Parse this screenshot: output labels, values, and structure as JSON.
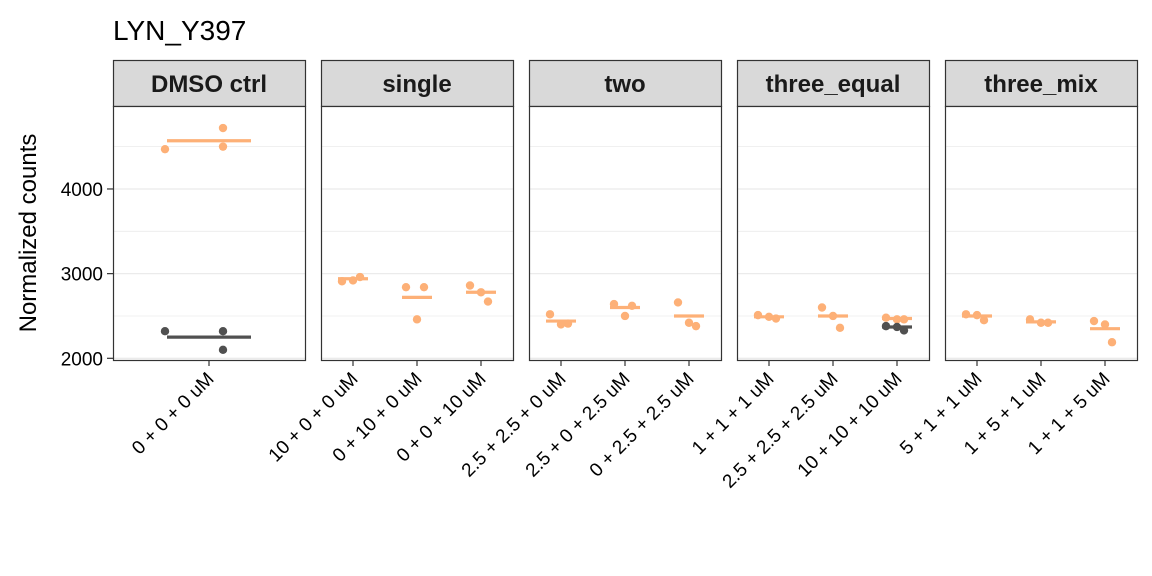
{
  "chart_data": {
    "type": "scatter",
    "title": "LYN_Y397",
    "ylabel": "Normalized counts",
    "xlabel": "",
    "ylim": [
      1980,
      4980
    ],
    "yticks": [
      2000,
      3000,
      4000
    ],
    "grid": true,
    "legend": "none",
    "colors": {
      "treated": "#FDB077",
      "control": "#505050",
      "strip_bg": "#D9D9D9",
      "panel_border": "#333333",
      "grid": "#EBEBEB"
    },
    "panels": [
      {
        "label": "DMSO ctrl",
        "categories": [
          "0 + 0 + 0 uM"
        ],
        "groups": [
          {
            "category": "0 + 0 + 0 uM",
            "series": "treated",
            "mean": 4570,
            "points": [
              4470,
              4720,
              4500
            ]
          },
          {
            "category": "0 + 0 + 0 uM",
            "series": "control",
            "mean": 2250,
            "points": [
              2320,
              2320,
              2100
            ]
          }
        ]
      },
      {
        "label": "single",
        "categories": [
          "10 + 0 + 0 uM",
          "0 + 10 + 0 uM",
          "0 + 0 + 10 uM"
        ],
        "groups": [
          {
            "category": "10 + 0 + 0 uM",
            "series": "treated",
            "mean": 2940,
            "points": [
              2910,
              2960,
              2920
            ]
          },
          {
            "category": "0 + 10 + 0 uM",
            "series": "treated",
            "mean": 2720,
            "points": [
              2840,
              2840,
              2460
            ]
          },
          {
            "category": "0 + 0 + 10 uM",
            "series": "treated",
            "mean": 2780,
            "points": [
              2860,
              2670,
              2780
            ]
          }
        ]
      },
      {
        "label": "two",
        "categories": [
          "2.5 + 2.5 + 0 uM",
          "2.5 + 0 + 2.5 uM",
          "0 + 2.5 + 2.5 uM"
        ],
        "groups": [
          {
            "category": "2.5 + 2.5 + 0 uM",
            "series": "treated",
            "mean": 2440,
            "points": [
              2520,
              2410,
              2400
            ]
          },
          {
            "category": "2.5 + 0 + 2.5 uM",
            "series": "treated",
            "mean": 2600,
            "points": [
              2640,
              2620,
              2500
            ]
          },
          {
            "category": "0 + 2.5 + 2.5 uM",
            "series": "treated",
            "mean": 2500,
            "points": [
              2660,
              2380,
              2420
            ]
          }
        ]
      },
      {
        "label": "three_equal",
        "categories": [
          "1 + 1 + 1 uM",
          "2.5 + 2.5 + 2.5 uM",
          "10 + 10 + 10 uM"
        ],
        "groups": [
          {
            "category": "1 + 1 + 1 uM",
            "series": "treated",
            "mean": 2490,
            "points": [
              2510,
              2470,
              2490
            ]
          },
          {
            "category": "2.5 + 2.5 + 2.5 uM",
            "series": "treated",
            "mean": 2500,
            "points": [
              2600,
              2360,
              2500
            ]
          },
          {
            "category": "10 + 10 + 10 uM",
            "series": "treated",
            "mean": 2470,
            "points": [
              2480,
              2460,
              2460
            ]
          },
          {
            "category": "10 + 10 + 10 uM",
            "series": "control",
            "mean": 2370,
            "points": [
              2380,
              2330,
              2370
            ]
          }
        ]
      },
      {
        "label": "three_mix",
        "categories": [
          "5 + 1 + 1 uM",
          "1 + 5 + 1 uM",
          "1 + 1 + 5 uM"
        ],
        "groups": [
          {
            "category": "5 + 1 + 1 uM",
            "series": "treated",
            "mean": 2500,
            "points": [
              2520,
              2450,
              2510
            ]
          },
          {
            "category": "1 + 5 + 1 uM",
            "series": "treated",
            "mean": 2430,
            "points": [
              2460,
              2420,
              2420
            ]
          },
          {
            "category": "1 + 1 + 5 uM",
            "series": "treated",
            "mean": 2350,
            "points": [
              2440,
              2190,
              2400
            ]
          }
        ]
      }
    ]
  }
}
